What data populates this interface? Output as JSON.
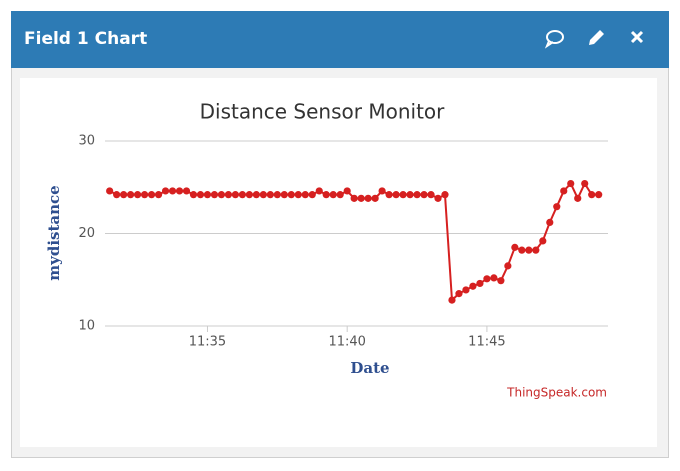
{
  "header": {
    "title": "Field 1 Chart"
  },
  "chart_data": {
    "type": "line",
    "title": "Distance Sensor Monitor",
    "x_label": "Date",
    "y_label": "mydistance",
    "credits": "ThingSpeak.com",
    "x": [
      "11:31:30",
      "11:31:45",
      "11:32:00",
      "11:32:15",
      "11:32:30",
      "11:32:45",
      "11:33:00",
      "11:33:15",
      "11:33:30",
      "11:33:45",
      "11:34:00",
      "11:34:15",
      "11:34:30",
      "11:34:45",
      "11:35:00",
      "11:35:15",
      "11:35:30",
      "11:35:45",
      "11:36:00",
      "11:36:15",
      "11:36:30",
      "11:36:45",
      "11:37:00",
      "11:37:15",
      "11:37:30",
      "11:37:45",
      "11:38:00",
      "11:38:15",
      "11:38:30",
      "11:38:45",
      "11:39:00",
      "11:39:15",
      "11:39:30",
      "11:39:45",
      "11:40:00",
      "11:40:15",
      "11:40:30",
      "11:40:45",
      "11:41:00",
      "11:41:15",
      "11:41:30",
      "11:41:45",
      "11:42:00",
      "11:42:15",
      "11:42:30",
      "11:42:45",
      "11:43:00",
      "11:43:15",
      "11:43:30",
      "11:43:45",
      "11:44:00",
      "11:44:15",
      "11:44:30",
      "11:44:45",
      "11:45:00",
      "11:45:15",
      "11:45:30",
      "11:45:45",
      "11:46:00",
      "11:46:15",
      "11:46:30",
      "11:46:45",
      "11:47:00",
      "11:47:15",
      "11:47:30",
      "11:47:45",
      "11:48:00",
      "11:48:15",
      "11:48:30",
      "11:48:45",
      "11:49:00"
    ],
    "series": [
      {
        "name": "mydistance",
        "color": "#d62020",
        "values": [
          24.6,
          24.2,
          24.2,
          24.2,
          24.2,
          24.2,
          24.2,
          24.2,
          24.6,
          24.6,
          24.6,
          24.6,
          24.2,
          24.2,
          24.2,
          24.2,
          24.2,
          24.2,
          24.2,
          24.2,
          24.2,
          24.2,
          24.2,
          24.2,
          24.2,
          24.2,
          24.2,
          24.2,
          24.2,
          24.2,
          24.6,
          24.2,
          24.2,
          24.2,
          24.6,
          23.8,
          23.8,
          23.8,
          23.8,
          24.6,
          24.2,
          24.2,
          24.2,
          24.2,
          24.2,
          24.2,
          24.2,
          23.8,
          24.2,
          12.8,
          13.5,
          13.9,
          14.3,
          14.6,
          15.1,
          15.2,
          14.9,
          16.5,
          18.5,
          18.2,
          18.2,
          18.2,
          19.2,
          21.2,
          22.9,
          24.6,
          25.4,
          23.8,
          25.4,
          24.2,
          24.2
        ]
      }
    ],
    "xlim": [
      "11:31:20",
      "11:49:20"
    ],
    "xticks": [
      "11:35",
      "11:40",
      "11:45"
    ],
    "ylim": [
      10,
      30
    ],
    "yticks": [
      10,
      20,
      30
    ],
    "grid": true
  }
}
